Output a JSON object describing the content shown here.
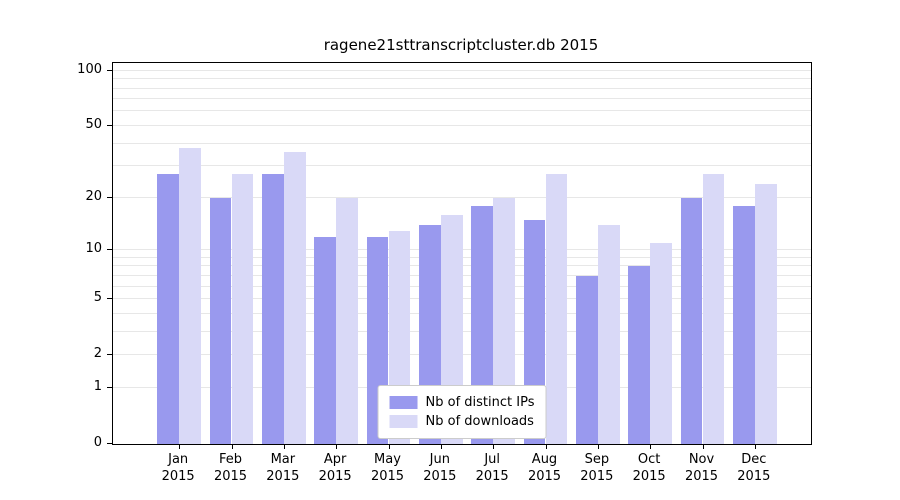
{
  "chart_data": {
    "type": "bar",
    "title": "ragene21sttranscriptcluster.db 2015",
    "categories": [
      "Jan",
      "Feb",
      "Mar",
      "Apr",
      "May",
      "Jun",
      "Jul",
      "Aug",
      "Sep",
      "Oct",
      "Nov",
      "Dec"
    ],
    "year": "2015",
    "series": [
      {
        "name": "Nb of distinct IPs",
        "color": "#9999ee",
        "values": [
          27,
          20,
          27,
          12,
          12,
          14,
          18,
          15,
          7,
          8,
          20,
          18
        ]
      },
      {
        "name": "Nb of downloads",
        "color": "#d9d9f7",
        "values": [
          38,
          27,
          36,
          20,
          13,
          16,
          20,
          27,
          14,
          11,
          27,
          24
        ]
      }
    ],
    "ylabel": "",
    "xlabel": "",
    "y_scale": "log1p",
    "y_ticks": [
      0,
      1,
      2,
      5,
      10,
      20,
      50,
      100
    ],
    "gridlines": [
      1,
      2,
      3,
      4,
      5,
      6,
      7,
      8,
      9,
      10,
      20,
      30,
      40,
      50,
      60,
      70,
      80,
      90,
      100
    ],
    "y_top": 110,
    "legend_position": "bottom-center",
    "grid": true,
    "axis_color": "#000000",
    "grid_color": "#e7e7e7"
  }
}
